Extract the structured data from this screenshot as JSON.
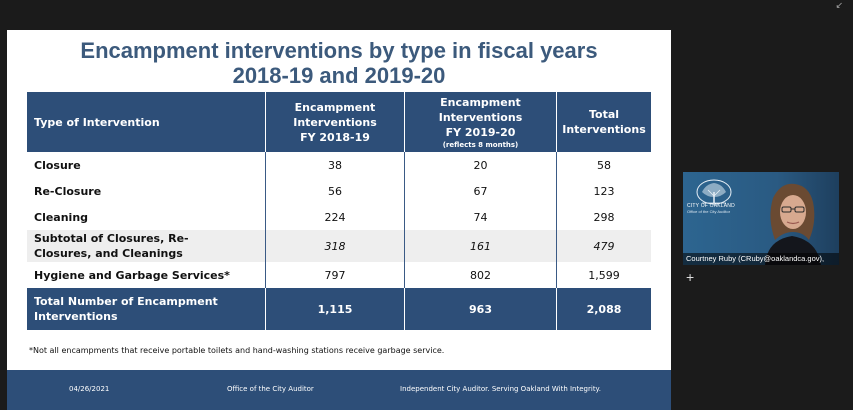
{
  "slide": {
    "title_line1": "Encampment interventions by type in fiscal years",
    "title_line2": "2018-19 and 2019-20",
    "table": {
      "headers": [
        {
          "line1": "Type of Intervention",
          "line2": "",
          "line3": "",
          "note": ""
        },
        {
          "line1": "Encampment",
          "line2": "Interventions",
          "line3": "FY 2018-19",
          "note": ""
        },
        {
          "line1": "Encampment",
          "line2": "Interventions",
          "line3": "FY 2019-20",
          "note": "(reflects 8 months)"
        },
        {
          "line1": "Total",
          "line2": "Interventions",
          "line3": "",
          "note": ""
        }
      ],
      "rows": [
        {
          "type": "Closure",
          "fy1819": "38",
          "fy1920": "20",
          "total": "58"
        },
        {
          "type": "Re-Closure",
          "fy1819": "56",
          "fy1920": "67",
          "total": "123"
        },
        {
          "type": "Cleaning",
          "fy1819": "224",
          "fy1920": "74",
          "total": "298"
        },
        {
          "type_line1": "Subtotal of Closures, Re-",
          "type_line2": "Closures, and Cleanings",
          "fy1819": "318",
          "fy1920": "161",
          "total": "479"
        },
        {
          "type": "Hygiene and Garbage Services*",
          "fy1819": "797",
          "fy1920": "802",
          "total": "1,599"
        },
        {
          "type_line1": "Total Number of Encampment",
          "type_line2": "Interventions",
          "fy1819": "1,115",
          "fy1920": "963",
          "total": "2,088"
        }
      ]
    },
    "footnote": "*Not all encampments that receive portable toilets and hand-washing stations receive garbage service.",
    "footer": {
      "date": "04/26/2021",
      "office": "Office of the City Auditor",
      "tagline": "Independent City Auditor. Serving Oakland With Integrity."
    }
  },
  "video": {
    "logo_line1": "CITY OF OAKLAND",
    "logo_line2": "Office of the City Auditor",
    "participant_name": "Courtney Ruby (CRuby@oaklandca.gov),"
  },
  "colors": {
    "header_blue": "#2d4e78",
    "title_blue": "#3c5a7c",
    "subtotal_gray": "#eeeeee"
  }
}
